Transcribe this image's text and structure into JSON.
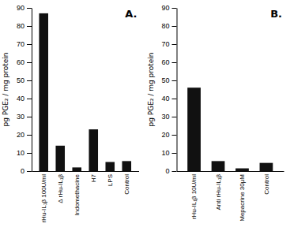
{
  "chart_data": [
    {
      "type": "bar",
      "title": "A.",
      "categories": [
        "rHu-IL₁β 100U/ml",
        "Δ rHu-IL₁β",
        "Indomethacine",
        "H7",
        "LPS",
        "Control"
      ],
      "values": [
        87,
        14,
        2,
        23,
        5,
        5.5
      ],
      "color": "#111111",
      "ylabel": "pg PGE₂ / mg protein",
      "ylim": [
        0,
        90
      ],
      "yticks": [
        0,
        10,
        20,
        30,
        40,
        50,
        60,
        70,
        80,
        90
      ]
    },
    {
      "type": "bar",
      "title": "B.",
      "categories": [
        "rHu-IL₁β 10U/ml",
        "Anti rHu-IL₁β",
        "Mepacrine 30μM",
        "Control"
      ],
      "values": [
        46,
        5.5,
        1.5,
        4.5
      ],
      "color": "#111111",
      "ylabel": "pg PGE₂ / mg protein",
      "ylim": [
        0,
        90
      ],
      "yticks": [
        0,
        10,
        20,
        30,
        40,
        50,
        60,
        70,
        80,
        90
      ]
    }
  ]
}
